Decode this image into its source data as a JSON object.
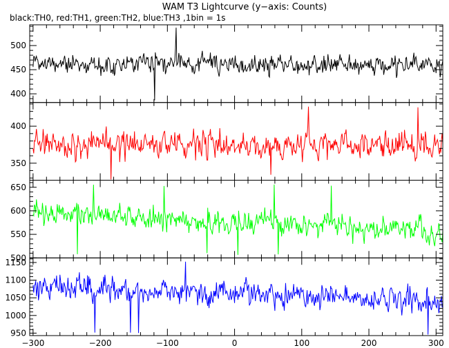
{
  "title": "WAM T3 Lightcurve (y−axis: Counts)",
  "subtitle": "black:TH0, red:TH1, green:TH2, blue:TH3 ,1bin = 1s",
  "chart_data": [
    {
      "type": "line",
      "name_label": "TH0",
      "color": "#000000",
      "xlim": [
        -305,
        310
      ],
      "ylim": [
        382,
        543
      ],
      "yticks": [
        400,
        450,
        500
      ],
      "model": {
        "x_start": -300,
        "x_end": 310,
        "start": 462,
        "end": 460,
        "noise_sd": 16,
        "spike_max": 540,
        "dip_min": 385
      }
    },
    {
      "type": "line",
      "name_label": "TH1",
      "color": "#ff0000",
      "xlim": [
        -305,
        310
      ],
      "ylim": [
        327,
        432
      ],
      "yticks": [
        350,
        400
      ],
      "model": {
        "x_start": -300,
        "x_end": 310,
        "start": 377,
        "end": 372,
        "noise_sd": 13,
        "spike_max": 432,
        "dip_min": 327
      }
    },
    {
      "type": "line",
      "name_label": "TH2",
      "color": "#00ff00",
      "xlim": [
        -305,
        310
      ],
      "ylim": [
        500,
        665
      ],
      "yticks": [
        500,
        550,
        600,
        650
      ],
      "model": {
        "x_start": -300,
        "x_end": 310,
        "start": 598,
        "end": 555,
        "noise_sd": 19,
        "spike_max": 660,
        "dip_min": 505
      }
    },
    {
      "type": "line",
      "name_label": "TH3",
      "color": "#0000ff",
      "xlim": [
        -305,
        310
      ],
      "ylim": [
        943,
        1163
      ],
      "yticks": [
        950,
        1000,
        1050,
        1100,
        1150
      ],
      "model": {
        "x_start": -300,
        "x_end": 310,
        "start": 1082,
        "end": 1040,
        "noise_sd": 27,
        "spike_max": 1160,
        "dip_min": 945
      }
    }
  ],
  "x_axis": {
    "ticks": [
      -300,
      -200,
      -100,
      0,
      100,
      200,
      300
    ],
    "tick_labels": [
      "−300",
      "−200",
      "−100",
      "0",
      "100",
      "200",
      "300"
    ]
  }
}
